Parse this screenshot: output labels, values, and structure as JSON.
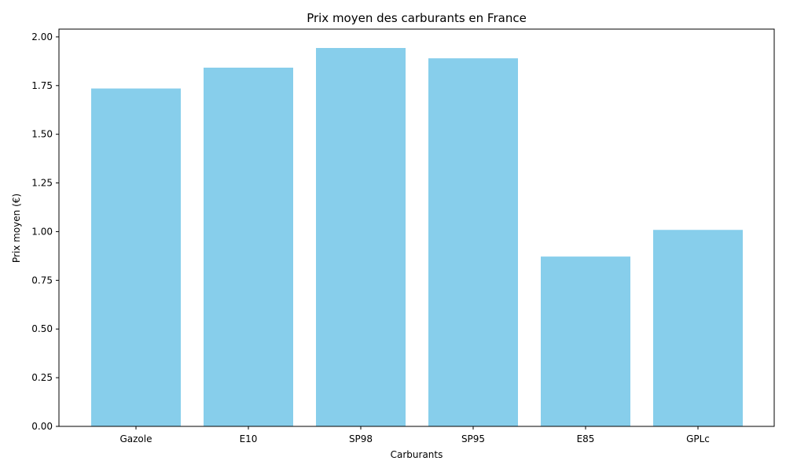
{
  "chart_data": {
    "type": "bar",
    "title": "Prix moyen des carburants en France",
    "xlabel": "Carburants",
    "ylabel": "Prix moyen (€)",
    "categories": [
      "Gazole",
      "E10",
      "SP98",
      "SP95",
      "E85",
      "GPLc"
    ],
    "values": [
      1.735,
      1.842,
      1.943,
      1.89,
      0.872,
      1.009
    ],
    "ylim": [
      0,
      2.04
    ],
    "yticks": [
      "0.00",
      "0.25",
      "0.50",
      "0.75",
      "1.00",
      "1.25",
      "1.50",
      "1.75",
      "2.00"
    ],
    "grid": false,
    "bar_color": "#87ceeb"
  }
}
